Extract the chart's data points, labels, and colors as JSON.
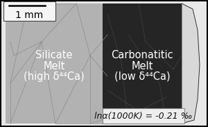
{
  "fig_width": 3.0,
  "fig_height": 1.83,
  "dpi": 100,
  "outer_bg": "#d0d0d0",
  "border_color": "#000000",
  "left_color": "#b0b0b0",
  "right_color": "#1e1e1e",
  "right_edge_color": "#c8c8c8",
  "left_label_line1": "Silicate",
  "left_label_line2": "Melt",
  "left_label_line3": "(high δ⁴⁴Ca)",
  "right_label_line1": "Carbonatitic",
  "right_label_line2": "Melt",
  "right_label_line3": "(low δ⁴⁴Ca)",
  "label_color": "#ffffff",
  "label_fontsize": 10.5,
  "scalebar_label": "1 mm",
  "scalebar_color": "#000000",
  "scalebar_fontsize": 10,
  "annotation_text": "lnα(1000K) = -0.21 ‰",
  "annotation_fontsize": 9,
  "annotation_bg": "#eeeeee",
  "annotation_border": "#888888",
  "texture_seed": 42
}
